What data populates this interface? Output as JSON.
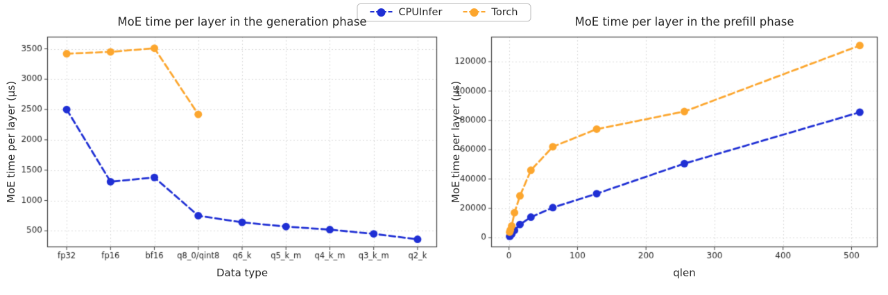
{
  "figure": {
    "background": "#ffffff",
    "legend": {
      "items": [
        {
          "label": "CPUInfer",
          "color": "#1f2fd4"
        },
        {
          "label": "Torch",
          "color": "#fca62e"
        }
      ]
    }
  },
  "chart_data": [
    {
      "type": "line",
      "title": "MoE time per layer in the generation phase",
      "xlabel": "Data type",
      "ylabel": "MoE time per layer (μs)",
      "x_type": "categorical",
      "categories": [
        "fp32",
        "fp16",
        "bf16",
        "q8_0/qint8",
        "q6_k",
        "q5_k_m",
        "q4_k_m",
        "q3_k_m",
        "q2_k"
      ],
      "yticks": [
        500,
        1000,
        1500,
        2000,
        2500,
        3000,
        3500
      ],
      "ylim": [
        230,
        3700
      ],
      "grid": true,
      "legend_position": "figure-top-center",
      "series": [
        {
          "name": "CPUInfer",
          "color": "#1f2fd4",
          "values": [
            2500,
            1310,
            1380,
            750,
            640,
            570,
            520,
            450,
            360
          ]
        },
        {
          "name": "Torch",
          "color": "#fca62e",
          "values": [
            3420,
            3450,
            3510,
            2420,
            null,
            null,
            null,
            null,
            null
          ]
        }
      ]
    },
    {
      "type": "line",
      "title": "MoE time per layer in the prefill phase",
      "xlabel": "qlen",
      "ylabel": "MoE time per layer (μs)",
      "x_type": "numeric",
      "x": [
        1,
        2,
        4,
        8,
        16,
        32,
        64,
        128,
        256,
        512
      ],
      "xticks": [
        0,
        100,
        200,
        300,
        400,
        500
      ],
      "xlim": [
        -26,
        538
      ],
      "yticks": [
        0,
        20000,
        40000,
        60000,
        80000,
        100000,
        120000
      ],
      "ylim": [
        -6500,
        137000
      ],
      "grid": true,
      "legend_position": "figure-top-center",
      "series": [
        {
          "name": "CPUInfer",
          "color": "#1f2fd4",
          "values": [
            900,
            1400,
            2400,
            5000,
            9000,
            14000,
            20500,
            30000,
            50500,
            85500
          ]
        },
        {
          "name": "Torch",
          "color": "#fca62e",
          "values": [
            3800,
            5200,
            8000,
            17000,
            28500,
            46000,
            62000,
            74000,
            86000,
            131000
          ]
        }
      ]
    }
  ]
}
